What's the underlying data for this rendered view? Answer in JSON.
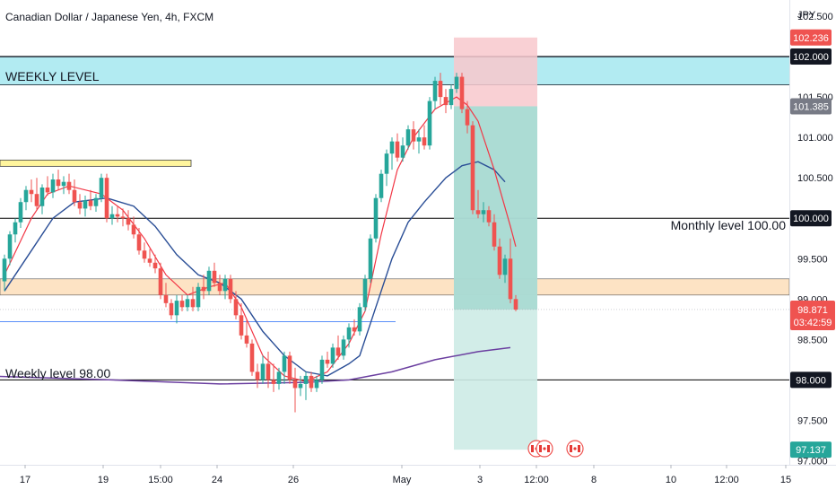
{
  "title": "Canadian Dollar / Japanese Yen, 4h, FXCM",
  "currency": "JPY",
  "colors": {
    "bull": "#26a69a",
    "bear": "#ef5350",
    "ema_fast": "#f23645",
    "ema_mid": "#2a4e96",
    "ema_slow": "#6b3fa0",
    "weekly_zone": "#b2ebf2",
    "hline": "#000000",
    "blue_line": "#5b8ff9",
    "stop_zone": "#f8c8cc",
    "target_zone": "#cdebe6",
    "target_zone_dark": "#9fd6cd",
    "yellow_bar": "#fff59d",
    "orange_zone": "#fde3c4"
  },
  "chart_data": {
    "type": "candlestick",
    "timeframe": "4h",
    "ylim": [
      96.95,
      102.7
    ],
    "yticks": [
      {
        "value": 102.5,
        "label": "102.500"
      },
      {
        "value": 101.5,
        "label": "101.500"
      },
      {
        "value": 101.0,
        "label": "101.000"
      },
      {
        "value": 100.5,
        "label": "100.500"
      },
      {
        "value": 99.5,
        "label": "99.500"
      },
      {
        "value": 99.0,
        "label": "99.000"
      },
      {
        "value": 98.5,
        "label": "98.500"
      },
      {
        "value": 97.5,
        "label": "97.500"
      },
      {
        "value": 97.0,
        "label": "97.000"
      }
    ],
    "xticks": [
      "17",
      "19",
      "15:00",
      "24",
      "26",
      "May",
      "3",
      "12:00",
      "8",
      "10",
      "12:00",
      "15"
    ],
    "price_tags": [
      {
        "value": 102.236,
        "label": "102.236",
        "style": "red"
      },
      {
        "value": 102.0,
        "label": "102.000",
        "style": "dark"
      },
      {
        "value": 101.385,
        "label": "101.385",
        "style": "gray"
      },
      {
        "value": 100.0,
        "label": "100.000",
        "style": "dark"
      },
      {
        "value": 98.0,
        "label": "98.000",
        "style": "dark"
      },
      {
        "value": 97.137,
        "label": "97.137",
        "style": "green"
      }
    ],
    "last_price": {
      "value": 98.871,
      "label": "98.871",
      "countdown": "03:42:59"
    },
    "annotations": [
      {
        "text": "WEEKLY LEVEL"
      },
      {
        "text": "Monthly level 100.00"
      },
      {
        "text": "Weekly level 98.00"
      }
    ],
    "zones": {
      "weekly": [
        101.65,
        102.0
      ],
      "orange": [
        99.05,
        99.25
      ],
      "yellow": [
        100.65,
        100.72
      ],
      "blue_line": 98.72
    },
    "hlines": [
      100.0,
      98.0
    ],
    "position": {
      "stop": 102.236,
      "entry": 101.385,
      "target": 97.137
    },
    "candles": [
      [
        0,
        99.22,
        99.55,
        99.1,
        99.5
      ],
      [
        1,
        99.5,
        99.84,
        99.42,
        99.8
      ],
      [
        2,
        99.8,
        100.0,
        99.7,
        99.95
      ],
      [
        3,
        99.95,
        100.25,
        99.88,
        100.2
      ],
      [
        4,
        100.2,
        100.4,
        100.1,
        100.35
      ],
      [
        5,
        100.35,
        100.48,
        100.2,
        100.3
      ],
      [
        6,
        100.3,
        100.5,
        100.1,
        100.15
      ],
      [
        7,
        100.15,
        100.42,
        100.05,
        100.38
      ],
      [
        8,
        100.38,
        100.52,
        100.28,
        100.32
      ],
      [
        9,
        100.32,
        100.55,
        100.25,
        100.48
      ],
      [
        10,
        100.48,
        100.6,
        100.35,
        100.4
      ],
      [
        11,
        100.4,
        100.52,
        100.3,
        100.45
      ],
      [
        12,
        100.45,
        100.55,
        100.3,
        100.35
      ],
      [
        13,
        100.35,
        100.48,
        100.15,
        100.2
      ],
      [
        14,
        100.2,
        100.3,
        100.05,
        100.12
      ],
      [
        15,
        100.12,
        100.28,
        100.02,
        100.22
      ],
      [
        16,
        100.22,
        100.35,
        100.1,
        100.15
      ],
      [
        17,
        100.15,
        100.3,
        100.08,
        100.25
      ],
      [
        18,
        100.25,
        100.55,
        100.2,
        100.5
      ],
      [
        19,
        100.5,
        100.55,
        99.95,
        100.0
      ],
      [
        20,
        100.0,
        100.15,
        99.92,
        100.05
      ],
      [
        21,
        100.05,
        100.15,
        99.95,
        100.02
      ],
      [
        22,
        100.02,
        100.12,
        99.9,
        100.0
      ],
      [
        23,
        100.0,
        100.1,
        99.85,
        99.92
      ],
      [
        24,
        99.92,
        100.02,
        99.75,
        99.8
      ],
      [
        25,
        99.8,
        99.88,
        99.55,
        99.6
      ],
      [
        26,
        99.6,
        99.7,
        99.45,
        99.5
      ],
      [
        27,
        99.5,
        99.62,
        99.4,
        99.45
      ],
      [
        28,
        99.45,
        99.55,
        99.32,
        99.38
      ],
      [
        29,
        99.38,
        99.45,
        99.0,
        99.05
      ],
      [
        30,
        99.05,
        99.2,
        98.9,
        98.95
      ],
      [
        31,
        98.95,
        99.0,
        98.75,
        98.8
      ],
      [
        32,
        98.8,
        99.05,
        98.7,
        98.98
      ],
      [
        33,
        98.98,
        99.05,
        98.85,
        98.9
      ],
      [
        34,
        98.9,
        99.05,
        98.85,
        99.0
      ],
      [
        35,
        99.0,
        99.15,
        98.85,
        98.9
      ],
      [
        36,
        98.9,
        99.2,
        98.85,
        99.15
      ],
      [
        37,
        99.15,
        99.3,
        99.0,
        99.1
      ],
      [
        38,
        99.1,
        99.4,
        99.05,
        99.35
      ],
      [
        39,
        99.35,
        99.45,
        99.15,
        99.2
      ],
      [
        40,
        99.2,
        99.3,
        99.05,
        99.1
      ],
      [
        41,
        99.1,
        99.3,
        99.0,
        99.25
      ],
      [
        42,
        99.25,
        99.3,
        98.95,
        99.0
      ],
      [
        43,
        99.0,
        99.1,
        98.75,
        98.8
      ],
      [
        44,
        98.8,
        98.95,
        98.5,
        98.55
      ],
      [
        45,
        98.55,
        98.75,
        98.4,
        98.45
      ],
      [
        46,
        98.45,
        98.5,
        98.05,
        98.1
      ],
      [
        47,
        98.1,
        98.2,
        97.9,
        98.0
      ],
      [
        48,
        98.0,
        98.3,
        97.95,
        98.2
      ],
      [
        49,
        98.2,
        98.35,
        97.9,
        98.0
      ],
      [
        50,
        98.0,
        98.2,
        97.85,
        97.95
      ],
      [
        51,
        97.95,
        98.15,
        97.88,
        98.1
      ],
      [
        52,
        98.1,
        98.35,
        97.95,
        98.3
      ],
      [
        53,
        98.3,
        98.35,
        97.95,
        98.0
      ],
      [
        54,
        98.0,
        98.15,
        97.6,
        97.9
      ],
      [
        55,
        97.9,
        98.05,
        97.8,
        97.95
      ],
      [
        56,
        97.95,
        98.1,
        97.75,
        98.05
      ],
      [
        57,
        98.05,
        98.1,
        97.85,
        97.9
      ],
      [
        58,
        97.9,
        98.05,
        97.85,
        98.0
      ],
      [
        59,
        98.0,
        98.3,
        97.95,
        98.25
      ],
      [
        60,
        98.25,
        98.35,
        98.15,
        98.2
      ],
      [
        61,
        98.2,
        98.45,
        98.15,
        98.4
      ],
      [
        62,
        98.4,
        98.55,
        98.25,
        98.3
      ],
      [
        63,
        98.3,
        98.55,
        98.25,
        98.5
      ],
      [
        64,
        98.5,
        98.7,
        98.4,
        98.65
      ],
      [
        65,
        98.65,
        98.75,
        98.55,
        98.6
      ],
      [
        66,
        98.6,
        98.95,
        98.55,
        98.9
      ],
      [
        67,
        98.9,
        99.3,
        98.85,
        99.25
      ],
      [
        68,
        99.25,
        99.8,
        99.2,
        99.75
      ],
      [
        69,
        99.75,
        100.3,
        99.7,
        100.25
      ],
      [
        70,
        100.25,
        100.6,
        100.2,
        100.55
      ],
      [
        71,
        100.55,
        100.85,
        100.4,
        100.8
      ],
      [
        72,
        100.8,
        101.0,
        100.6,
        100.95
      ],
      [
        73,
        100.95,
        101.05,
        100.7,
        100.75
      ],
      [
        74,
        100.75,
        101.0,
        100.7,
        100.9
      ],
      [
        75,
        100.9,
        101.15,
        100.85,
        101.1
      ],
      [
        76,
        101.1,
        101.2,
        100.85,
        100.95
      ],
      [
        77,
        100.95,
        101.1,
        100.8,
        101.0
      ],
      [
        78,
        101.0,
        101.15,
        100.85,
        100.9
      ],
      [
        79,
        100.9,
        101.5,
        100.85,
        101.45
      ],
      [
        80,
        101.45,
        101.75,
        101.35,
        101.7
      ],
      [
        81,
        101.7,
        101.8,
        101.4,
        101.5
      ],
      [
        82,
        101.5,
        101.6,
        101.3,
        101.4
      ],
      [
        83,
        101.4,
        101.65,
        101.35,
        101.6
      ],
      [
        84,
        101.6,
        101.8,
        101.55,
        101.75
      ],
      [
        85,
        101.75,
        101.8,
        101.3,
        101.35
      ],
      [
        86,
        101.35,
        101.45,
        101.05,
        101.15
      ],
      [
        87,
        101.15,
        101.2,
        100.05,
        100.1
      ],
      [
        88,
        100.1,
        100.35,
        100.0,
        100.05
      ],
      [
        89,
        100.05,
        100.2,
        99.95,
        100.1
      ],
      [
        90,
        100.1,
        100.15,
        99.9,
        99.95
      ],
      [
        91,
        99.95,
        100.05,
        99.6,
        99.65
      ],
      [
        92,
        99.65,
        99.75,
        99.25,
        99.3
      ],
      [
        93,
        99.3,
        99.55,
        99.2,
        99.5
      ],
      [
        94,
        99.5,
        99.75,
        98.95,
        99.0
      ],
      [
        95,
        99.0,
        99.05,
        98.85,
        98.87
      ]
    ],
    "ema_fast": [
      [
        0,
        99.3
      ],
      [
        5,
        100.0
      ],
      [
        8,
        100.3
      ],
      [
        12,
        100.4
      ],
      [
        18,
        100.3
      ],
      [
        22,
        100.1
      ],
      [
        26,
        99.75
      ],
      [
        30,
        99.3
      ],
      [
        34,
        99.05
      ],
      [
        38,
        99.15
      ],
      [
        41,
        99.2
      ],
      [
        44,
        98.9
      ],
      [
        48,
        98.3
      ],
      [
        52,
        98.05
      ],
      [
        56,
        97.98
      ],
      [
        60,
        98.1
      ],
      [
        64,
        98.45
      ],
      [
        67,
        98.85
      ],
      [
        70,
        99.8
      ],
      [
        73,
        100.6
      ],
      [
        76,
        101.0
      ],
      [
        80,
        101.35
      ],
      [
        84,
        101.5
      ],
      [
        86,
        101.4
      ],
      [
        88,
        101.2
      ],
      [
        91,
        100.6
      ],
      [
        94,
        99.9
      ],
      [
        95,
        99.65
      ]
    ],
    "ema_mid": [
      [
        0,
        99.1
      ],
      [
        5,
        99.6
      ],
      [
        9,
        100.0
      ],
      [
        13,
        100.2
      ],
      [
        19,
        100.25
      ],
      [
        24,
        100.15
      ],
      [
        28,
        99.9
      ],
      [
        32,
        99.55
      ],
      [
        36,
        99.3
      ],
      [
        40,
        99.2
      ],
      [
        44,
        99.0
      ],
      [
        48,
        98.6
      ],
      [
        52,
        98.3
      ],
      [
        56,
        98.1
      ],
      [
        60,
        98.05
      ],
      [
        64,
        98.2
      ],
      [
        66,
        98.3
      ],
      [
        69,
        98.9
      ],
      [
        72,
        99.5
      ],
      [
        75,
        99.95
      ],
      [
        78,
        100.2
      ],
      [
        82,
        100.5
      ],
      [
        85,
        100.65
      ],
      [
        88,
        100.7
      ],
      [
        91,
        100.6
      ],
      [
        93,
        100.45
      ]
    ],
    "ema_slow": [
      [
        -4,
        98.05
      ],
      [
        20,
        98.0
      ],
      [
        40,
        97.95
      ],
      [
        56,
        97.97
      ],
      [
        64,
        98.0
      ],
      [
        72,
        98.1
      ],
      [
        80,
        98.25
      ],
      [
        88,
        98.35
      ],
      [
        94,
        98.4
      ]
    ]
  }
}
